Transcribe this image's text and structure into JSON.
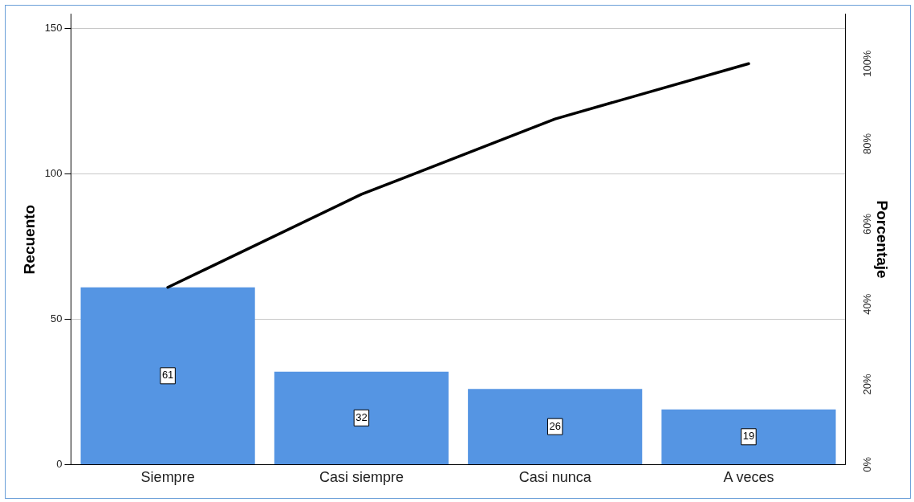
{
  "chart_data": {
    "type": "bar",
    "categories": [
      "Siempre",
      "Casi siempre",
      "Casi nunca",
      "A veces"
    ],
    "ylabel": "Recuento",
    "y2label": "Porcentaje",
    "ylim": [
      0,
      155
    ],
    "yticks": [
      0,
      50,
      100,
      150
    ],
    "y2lim": [
      0,
      112.3
    ],
    "y2ticks": [
      {
        "value": 0,
        "label": "0%"
      },
      {
        "value": 20,
        "label": "20%"
      },
      {
        "value": 40,
        "label": "40%"
      },
      {
        "value": 60,
        "label": "60%"
      },
      {
        "value": 80,
        "label": "80%"
      },
      {
        "value": 100,
        "label": "100%"
      }
    ],
    "grid": "y",
    "legend": false,
    "marker": "none",
    "series": [
      {
        "color": "#5595e3",
        "values": [
          61,
          32,
          26,
          19
        ],
        "value_labels": [
          "61",
          "32",
          "26",
          "19"
        ]
      },
      {
        "type": "line",
        "axis": "y2",
        "color": "#000000",
        "values": [
          44.2,
          67.4,
          86.2,
          100
        ]
      }
    ]
  }
}
